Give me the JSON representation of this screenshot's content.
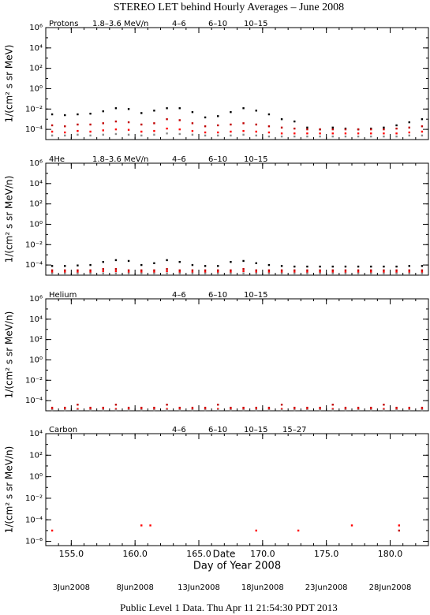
{
  "title": "STEREO LET behind Hourly Averages – June 2008",
  "footer": "Public Level 1 Data. Thu Apr 11 21:54:30 PDT 2013",
  "chart_data": [
    {
      "type": "scatter",
      "label": "Protons",
      "y_label": "1/(cm² s sr MeV)",
      "log_y": true,
      "xlim": [
        153,
        183
      ],
      "ylim": [
        1e-05,
        1000000
      ],
      "yticks": [
        {
          "value": 1000000,
          "label": "10⁶"
        },
        {
          "value": 10000,
          "label": "10⁴"
        },
        {
          "value": 100,
          "label": "10²"
        },
        {
          "value": 1,
          "label": "10⁰"
        },
        {
          "value": 0.01,
          "label": "10⁻²"
        },
        {
          "value": 0.0001,
          "label": "10⁻⁴"
        }
      ],
      "x": [
        153.5,
        154.5,
        155.5,
        156.5,
        157.5,
        158.5,
        159.5,
        160.5,
        161.5,
        162.5,
        163.5,
        164.5,
        165.5,
        166.5,
        167.5,
        168.5,
        169.5,
        170.5,
        171.5,
        172.5,
        173.5,
        174.5,
        175.5,
        176.5,
        177.5,
        178.5,
        179.5,
        180.5,
        181.5,
        182.5
      ],
      "series": [
        {
          "name": "1.8–3.6 MeV/n",
          "color": "#000000",
          "values": [
            0.003,
            0.0025,
            0.003,
            0.0035,
            0.006,
            0.012,
            0.01,
            0.004,
            0.007,
            0.012,
            0.012,
            0.005,
            0.0015,
            0.002,
            0.005,
            0.012,
            0.007,
            0.003,
            0.001,
            0.0006,
            0.00015,
            0.0001,
            0.00015,
            0.00012,
            0.0001,
            0.00012,
            0.00015,
            0.00025,
            0.0005,
            0.001
          ]
        },
        {
          "name": "4–6",
          "color": "#c00000",
          "values": [
            0.00025,
            0.0002,
            0.0003,
            0.0003,
            0.0004,
            0.0006,
            0.0005,
            0.0003,
            0.0004,
            0.001,
            0.0008,
            0.0004,
            0.0002,
            0.00025,
            0.0003,
            0.0004,
            0.0003,
            0.0002,
            0.00015,
            0.00012,
            0.0001,
            0.0001,
            0.0001,
            0.0001,
            0.0001,
            0.0001,
            0.0001,
            0.00012,
            0.00015,
            0.0002
          ]
        },
        {
          "name": "6–10",
          "color": "#ff0000",
          "values": [
            6e-05,
            5e-05,
            7e-05,
            6e-05,
            8e-05,
            0.0001,
            9e-05,
            6e-05,
            7e-05,
            0.00012,
            0.0001,
            7e-05,
            5e-05,
            5e-05,
            6e-05,
            7e-05,
            6e-05,
            5e-05,
            4e-05,
            4e-05,
            4e-05,
            4e-05,
            4e-05,
            4e-05,
            4e-05,
            4e-05,
            4e-05,
            4e-05,
            5e-05,
            6e-05
          ]
        },
        {
          "name": "10–15",
          "color": "#888888",
          "values": [
            2.5e-05,
            2.5e-05,
            3e-05,
            2.5e-05,
            3e-05,
            3.5e-05,
            3e-05,
            2.5e-05,
            3e-05,
            4e-05,
            3.5e-05,
            3e-05,
            2.5e-05,
            2.5e-05,
            2.5e-05,
            3e-05,
            2.5e-05,
            2e-05,
            2e-05,
            2e-05,
            2e-05,
            2e-05,
            2e-05,
            2e-05,
            2e-05,
            2e-05,
            2e-05,
            2e-05,
            2.5e-05,
            2.5e-05
          ]
        }
      ]
    },
    {
      "type": "scatter",
      "label": "4He",
      "y_label": "1/(cm² s sr MeV/n)",
      "log_y": true,
      "xlim": [
        153,
        183
      ],
      "ylim": [
        1e-05,
        1000000
      ],
      "yticks": [
        {
          "value": 1000000,
          "label": "10⁶"
        },
        {
          "value": 10000,
          "label": "10⁴"
        },
        {
          "value": 100,
          "label": "10²"
        },
        {
          "value": 1,
          "label": "10⁰"
        },
        {
          "value": 0.01,
          "label": "10⁻²"
        },
        {
          "value": 0.0001,
          "label": "10⁻⁴"
        }
      ],
      "x": [
        153.5,
        154.5,
        155.5,
        156.5,
        157.5,
        158.5,
        159.5,
        160.5,
        161.5,
        162.5,
        163.5,
        164.5,
        165.5,
        166.5,
        167.5,
        168.5,
        169.5,
        170.5,
        171.5,
        172.5,
        173.5,
        174.5,
        175.5,
        176.5,
        177.5,
        178.5,
        179.5,
        180.5,
        181.5,
        182.5
      ],
      "series": [
        {
          "name": "1.8–3.6 MeV/n",
          "color": "#000000",
          "values": [
            8e-05,
            8e-05,
            9e-05,
            0.0001,
            0.0002,
            0.0003,
            0.00025,
            0.0001,
            0.00015,
            0.0003,
            0.0002,
            0.0001,
            8e-05,
            8e-05,
            0.0002,
            0.00025,
            0.00015,
            0.0001,
            8e-05,
            7e-05,
            7e-05,
            7e-05,
            7e-05,
            7e-05,
            7e-05,
            7e-05,
            7e-05,
            7e-05,
            8e-05,
            8e-05
          ]
        },
        {
          "name": "4–6",
          "color": "#c00000",
          "values": [
            3e-05,
            3e-05,
            3e-05,
            3e-05,
            4e-05,
            4e-05,
            3e-05,
            3e-05,
            3e-05,
            4e-05,
            3e-05,
            3e-05,
            3e-05,
            3e-05,
            3e-05,
            4e-05,
            3e-05,
            3e-05,
            3e-05,
            3e-05,
            3e-05,
            3e-05,
            3e-05,
            3e-05,
            3e-05,
            3e-05,
            3e-05,
            3e-05,
            3e-05,
            3e-05
          ]
        },
        {
          "name": "6–10",
          "color": "#ff0000",
          "values": [
            2e-05,
            2e-05,
            2e-05,
            2e-05,
            2.5e-05,
            2.5e-05,
            2e-05,
            2e-05,
            2e-05,
            2.5e-05,
            2e-05,
            2e-05,
            2e-05,
            2e-05,
            2e-05,
            2.5e-05,
            2e-05,
            2e-05,
            2e-05,
            2e-05,
            2e-05,
            2e-05,
            2e-05,
            2e-05,
            2e-05,
            2e-05,
            2e-05,
            2e-05,
            2e-05,
            2e-05
          ]
        },
        {
          "name": "10–15",
          "color": "#888888",
          "values": [
            1.5e-05,
            1.5e-05,
            1.5e-05,
            1.5e-05,
            1.5e-05,
            1.5e-05,
            1.5e-05,
            1.5e-05,
            1.5e-05,
            1.5e-05,
            1.5e-05,
            1.5e-05,
            1.5e-05,
            1.5e-05,
            1.5e-05,
            1.5e-05,
            1.5e-05,
            1.5e-05,
            1.5e-05,
            1.5e-05,
            1.5e-05,
            1.5e-05,
            1.5e-05,
            1.5e-05,
            1.5e-05,
            1.5e-05,
            1.5e-05,
            1.5e-05,
            1.5e-05,
            1.5e-05
          ]
        }
      ]
    },
    {
      "type": "scatter",
      "label": "Helium",
      "y_label": "1/(cm² s sr MeV/n)",
      "log_y": true,
      "xlim": [
        153,
        183
      ],
      "ylim": [
        1e-05,
        1000000
      ],
      "yticks": [
        {
          "value": 1000000,
          "label": "10⁶"
        },
        {
          "value": 10000,
          "label": "10⁴"
        },
        {
          "value": 100,
          "label": "10²"
        },
        {
          "value": 1,
          "label": "10⁰"
        },
        {
          "value": 0.01,
          "label": "10⁻²"
        },
        {
          "value": 0.0001,
          "label": "10⁻⁴"
        }
      ],
      "x": [
        153.5,
        154.5,
        155.5,
        156.5,
        157.5,
        158.5,
        159.5,
        160.5,
        161.5,
        162.5,
        163.5,
        164.5,
        165.5,
        166.5,
        167.5,
        168.5,
        169.5,
        170.5,
        171.5,
        172.5,
        173.5,
        174.5,
        175.5,
        176.5,
        177.5,
        178.5,
        179.5,
        180.5,
        181.5,
        182.5
      ],
      "series": [
        {
          "name": "4–6",
          "color": "#c00000",
          "values": [
            2e-05,
            2e-05,
            4e-05,
            2e-05,
            2e-05,
            4e-05,
            2e-05,
            2e-05,
            2e-05,
            4e-05,
            2e-05,
            2e-05,
            2e-05,
            4e-05,
            2e-05,
            2e-05,
            2e-05,
            2e-05,
            4e-05,
            2e-05,
            2e-05,
            2e-05,
            4e-05,
            2e-05,
            2e-05,
            2e-05,
            4e-05,
            2e-05,
            2e-05,
            2e-05
          ]
        },
        {
          "name": "6–10",
          "color": "#ff0000",
          "values": [
            1.5e-05,
            1.5e-05,
            1.5e-05,
            1.5e-05,
            1.5e-05,
            1.5e-05,
            1.5e-05,
            1.5e-05,
            1.5e-05,
            1.5e-05,
            1.5e-05,
            1.5e-05,
            1.5e-05,
            1.5e-05,
            1.5e-05,
            1.5e-05,
            1.5e-05,
            1.5e-05,
            1.5e-05,
            1.5e-05,
            1.5e-05,
            1.5e-05,
            1.5e-05,
            1.5e-05,
            1.5e-05,
            1.5e-05,
            1.5e-05,
            1.5e-05,
            1.5e-05,
            1.5e-05
          ]
        },
        {
          "name": "10–15",
          "color": "#888888",
          "values": [
            1.2e-05,
            1.2e-05,
            1.2e-05,
            1.2e-05,
            1.2e-05,
            1.2e-05,
            1.2e-05,
            1.2e-05,
            1.2e-05,
            1.2e-05,
            1.2e-05,
            1.2e-05,
            1.2e-05,
            1.2e-05,
            1.2e-05,
            1.2e-05,
            1.2e-05,
            1.2e-05,
            1.2e-05,
            1.2e-05,
            1.2e-05,
            1.2e-05,
            1.2e-05,
            1.2e-05,
            1.2e-05,
            1.2e-05,
            1.2e-05,
            1.2e-05,
            1.2e-05,
            1.2e-05
          ]
        }
      ]
    },
    {
      "type": "scatter",
      "label": "Carbon",
      "y_label": "1/(cm² s sr MeV/n)",
      "log_y": true,
      "x_label": "Day of Year 2008",
      "date_label": "Date",
      "xlim": [
        153,
        183
      ],
      "ylim": [
        4e-07,
        10000
      ],
      "xticks": [
        {
          "value": 155,
          "label": "155.0"
        },
        {
          "value": 160,
          "label": "160.0"
        },
        {
          "value": 165,
          "label": "165.0"
        },
        {
          "value": 170,
          "label": "170.0"
        },
        {
          "value": 175,
          "label": "175.0"
        },
        {
          "value": 180,
          "label": "180.0"
        }
      ],
      "date_ticks": [
        {
          "value": 155,
          "label": "3Jun2008"
        },
        {
          "value": 160,
          "label": "8Jun2008"
        },
        {
          "value": 165,
          "label": "13Jun2008"
        },
        {
          "value": 170,
          "label": "18Jun2008"
        },
        {
          "value": 175,
          "label": "23Jun2008"
        },
        {
          "value": 180,
          "label": "28Jun2008"
        }
      ],
      "yticks": [
        {
          "value": 10000,
          "label": "10⁴"
        },
        {
          "value": 100,
          "label": "10²"
        },
        {
          "value": 1,
          "label": "10⁰"
        },
        {
          "value": 0.01,
          "label": "10⁻²"
        },
        {
          "value": 0.0001,
          "label": "10⁻⁴"
        },
        {
          "value": 1e-06,
          "label": "10⁻⁶"
        }
      ],
      "x": [
        153.5,
        160.5,
        161.2,
        169.5,
        172.8,
        177.0,
        180.7
      ],
      "series": [
        {
          "name": "4–6",
          "color": "#c00000",
          "values": [
            null,
            null,
            null,
            null,
            null,
            null,
            1e-05
          ]
        },
        {
          "name": "6–10",
          "color": "#ff0000",
          "values": [
            1e-05,
            3e-05,
            3e-05,
            1e-05,
            1e-05,
            3e-05,
            3e-05
          ]
        },
        {
          "name": "10–15",
          "color": "#888888",
          "values": [
            null,
            null,
            null,
            null,
            null,
            null,
            null
          ]
        },
        {
          "name": "15–27",
          "color": "#0000ff",
          "values": [
            null,
            null,
            null,
            null,
            null,
            null,
            null
          ]
        }
      ]
    }
  ]
}
